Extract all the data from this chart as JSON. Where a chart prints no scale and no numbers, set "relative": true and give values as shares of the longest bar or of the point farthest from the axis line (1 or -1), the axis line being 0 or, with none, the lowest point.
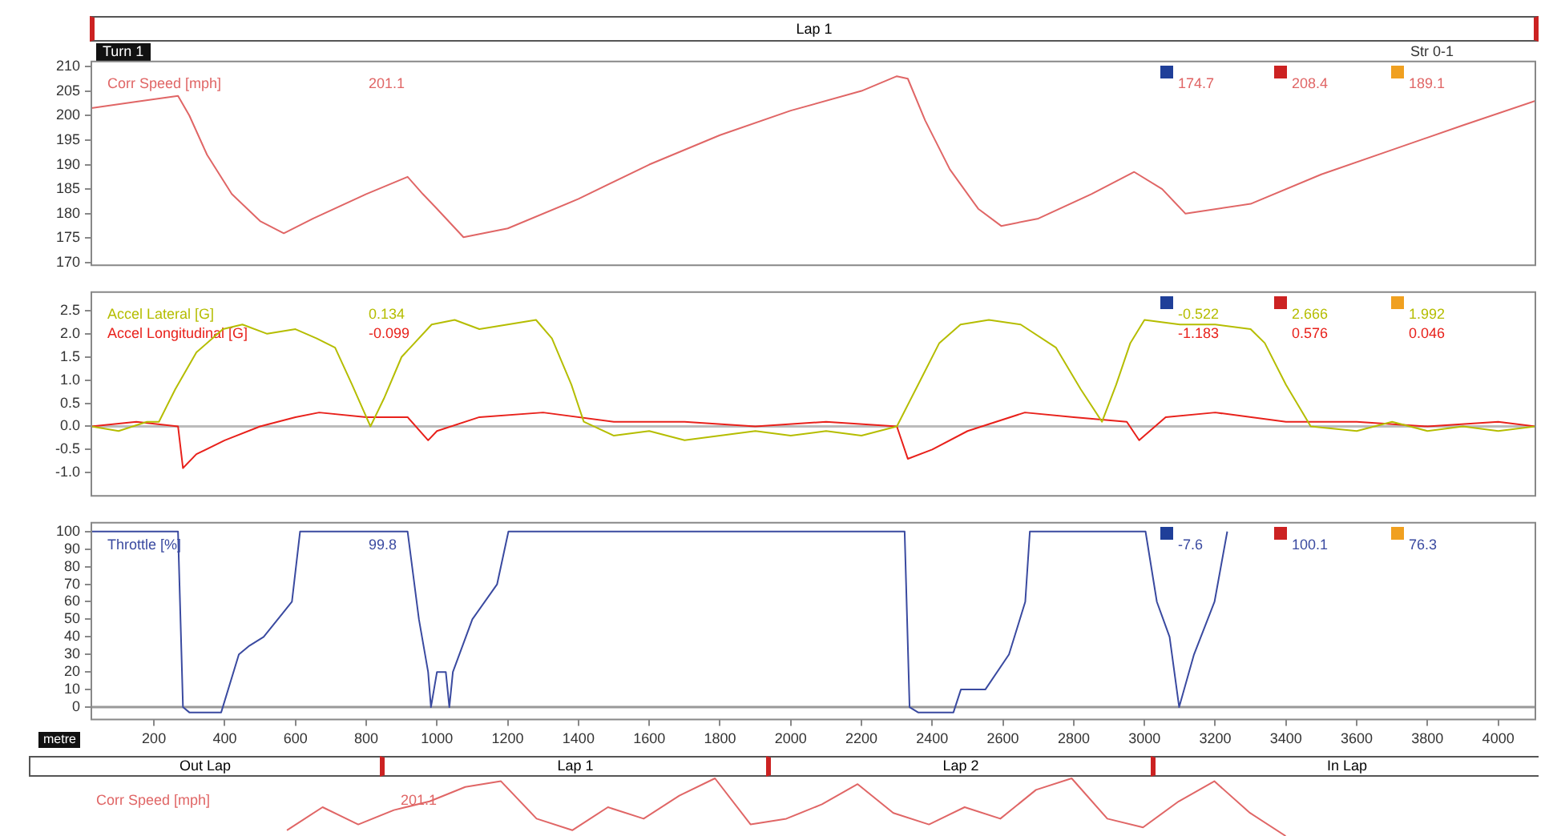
{
  "chart_data": [
    {
      "type": "line",
      "annotations": [
        "Lap 1",
        "Turn 1",
        "Str 0-1",
        "201.1",
        "174.7",
        "208.4",
        "189.1"
      ],
      "xlim": [
        23,
        4105
      ],
      "ylim": [
        169.5,
        211
      ],
      "yticks": [
        170,
        175,
        180,
        185,
        190,
        195,
        200,
        205,
        210
      ],
      "tick_labels": "y",
      "series": [
        {
          "name": "Corr Speed [mph]",
          "color": "#e06666",
          "x": [
            23,
            150,
            268,
            300,
            350,
            420,
            500,
            567,
            650,
            800,
            917,
            960,
            1000,
            1075,
            1200,
            1400,
            1600,
            1800,
            2000,
            2200,
            2300,
            2331,
            2380,
            2450,
            2530,
            2595,
            2700,
            2850,
            2971,
            3050,
            3116,
            3300,
            3500,
            3700,
            3900,
            4105
          ],
          "values": [
            201.5,
            202.8,
            204,
            200,
            192,
            184,
            178.5,
            176,
            179,
            184,
            187.5,
            184,
            181,
            175.2,
            177,
            183,
            190,
            196,
            201,
            205,
            208,
            207.5,
            199,
            189,
            181,
            177.5,
            179,
            184,
            188.5,
            185,
            180,
            182,
            188,
            193,
            198,
            203
          ]
        }
      ]
    },
    {
      "type": "line",
      "annotations": [
        "0.134",
        "-0.099",
        "-0.522",
        "-1.183",
        "2.666",
        "0.576",
        "1.992",
        "0.046"
      ],
      "xlim": [
        23,
        4105
      ],
      "ylim": [
        -1.5,
        2.9
      ],
      "yticks": [
        {
          "value": -1,
          "label": "-1.0"
        },
        -0.5,
        {
          "value": 0,
          "label": "0.0"
        },
        0.5,
        {
          "value": 1,
          "label": "1.0"
        },
        1.5,
        {
          "value": 2,
          "label": "2.0"
        },
        2.5
      ],
      "tick_labels": "y",
      "ref_lines": [
        {
          "axis": "y",
          "value": 0,
          "color": "#bbbbbb"
        }
      ],
      "series": [
        {
          "name": "Accel Lateral [G]",
          "color": "#b5bd00",
          "x": [
            23,
            100,
            180,
            214,
            260,
            320,
            395,
            450,
            520,
            600,
            660,
            712,
            760,
            812,
            850,
            900,
            985,
            1050,
            1120,
            1200,
            1280,
            1325,
            1380,
            1415,
            1500,
            1600,
            1700,
            1800,
            1900,
            2000,
            2100,
            2200,
            2300,
            2360,
            2420,
            2480,
            2560,
            2650,
            2750,
            2820,
            2880,
            2920,
            2960,
            3000,
            3100,
            3200,
            3300,
            3340,
            3400,
            3470,
            3600,
            3700,
            3800,
            3900,
            4000,
            4105
          ],
          "values": [
            0.0,
            -0.1,
            0.1,
            0.1,
            0.8,
            1.6,
            2.1,
            2.2,
            2.0,
            2.1,
            1.9,
            1.7,
            0.9,
            0.0,
            0.6,
            1.5,
            2.2,
            2.3,
            2.1,
            2.2,
            2.3,
            1.9,
            0.9,
            0.1,
            -0.2,
            -0.1,
            -0.3,
            -0.2,
            -0.1,
            -0.2,
            -0.1,
            -0.2,
            0.0,
            0.9,
            1.8,
            2.2,
            2.3,
            2.2,
            1.7,
            0.8,
            0.1,
            0.9,
            1.8,
            2.3,
            2.2,
            2.2,
            2.1,
            1.8,
            0.9,
            0.0,
            -0.1,
            0.1,
            -0.1,
            0.0,
            -0.1,
            0.0
          ]
        },
        {
          "name": "Accel Longitudinal [G]",
          "color": "#e8211b",
          "x": [
            23,
            150,
            268,
            282,
            320,
            400,
            500,
            600,
            667,
            800,
            917,
            975,
            1000,
            1120,
            1300,
            1500,
            1700,
            1900,
            2100,
            2300,
            2331,
            2400,
            2500,
            2662,
            2800,
            2950,
            2985,
            3060,
            3200,
            3400,
            3600,
            3800,
            4000,
            4105
          ],
          "values": [
            0.0,
            0.1,
            0.0,
            -0.9,
            -0.6,
            -0.3,
            0.0,
            0.2,
            0.3,
            0.2,
            0.2,
            -0.3,
            -0.1,
            0.2,
            0.3,
            0.1,
            0.1,
            0.0,
            0.1,
            0.0,
            -0.7,
            -0.5,
            -0.1,
            0.3,
            0.2,
            0.1,
            -0.3,
            0.2,
            0.3,
            0.1,
            0.1,
            0.0,
            0.1,
            0.0
          ]
        }
      ]
    },
    {
      "type": "line",
      "annotations": [
        "99.8",
        "-7.6",
        "100.1",
        "76.3"
      ],
      "xlabel": "metre",
      "xlim": [
        23,
        4105
      ],
      "ylim": [
        -7,
        105
      ],
      "xticks": [
        200,
        400,
        600,
        800,
        1000,
        1200,
        1400,
        1600,
        1800,
        2000,
        2200,
        2400,
        2600,
        2800,
        3000,
        3200,
        3400,
        3600,
        3800,
        4000
      ],
      "yticks": [
        0,
        10,
        20,
        30,
        40,
        50,
        60,
        70,
        80,
        90,
        100
      ],
      "ref_lines": [
        {
          "axis": "y",
          "value": 0,
          "color": "#999999"
        }
      ],
      "series": [
        {
          "name": "Throttle [%]",
          "color": "#3a4aa0",
          "x": [
            23,
            268,
            282,
            300,
            390,
            440,
            470,
            510,
            590,
            613,
            917,
            949,
            975,
            983,
            1000,
            1025,
            1035,
            1045,
            1100,
            1170,
            1202,
            2322,
            2336,
            2360,
            2460,
            2481,
            2550,
            2617,
            2663,
            2676,
            3003,
            3035,
            3071,
            3098,
            3140,
            3198,
            3234
          ],
          "values": [
            100,
            100,
            0,
            -3,
            -3,
            30,
            35,
            40,
            60,
            100,
            100,
            50,
            20,
            0,
            20,
            20,
            0,
            20,
            50,
            70,
            100,
            100,
            0,
            -3,
            -3,
            10,
            10,
            30,
            60,
            100,
            100,
            60,
            40,
            0,
            30,
            60,
            100
          ]
        }
      ]
    },
    {
      "type": "line",
      "relative": true,
      "tick_labels": false,
      "annotations": [
        "Out Lap",
        "Lap 1",
        "Lap 2",
        "In Lap",
        "201.1"
      ],
      "categories": [
        null,
        null,
        null,
        null,
        null,
        null,
        null,
        null,
        null,
        null,
        null,
        null,
        null,
        null,
        null,
        null,
        null,
        null,
        null,
        null,
        null,
        null,
        null,
        null,
        null,
        null,
        null,
        null,
        null,
        null,
        null,
        null,
        null,
        null,
        null,
        null,
        null,
        null,
        null,
        null
      ],
      "series": [
        {
          "name": "Corr Speed [mph]",
          "color": "#e06666",
          "values": [
            null,
            null,
            null,
            null,
            0.1,
            0.5,
            0.2,
            0.45,
            0.6,
            0.85,
            0.95,
            0.3,
            0.1,
            0.5,
            0.3,
            0.7,
            1.0,
            0.2,
            0.3,
            0.55,
            0.9,
            0.4,
            0.2,
            0.5,
            0.3,
            0.8,
            1.0,
            0.3,
            0.15,
            0.6,
            0.95,
            0.4,
            0.0,
            null,
            null,
            null,
            null,
            null,
            null,
            null
          ]
        }
      ]
    }
  ]
}
